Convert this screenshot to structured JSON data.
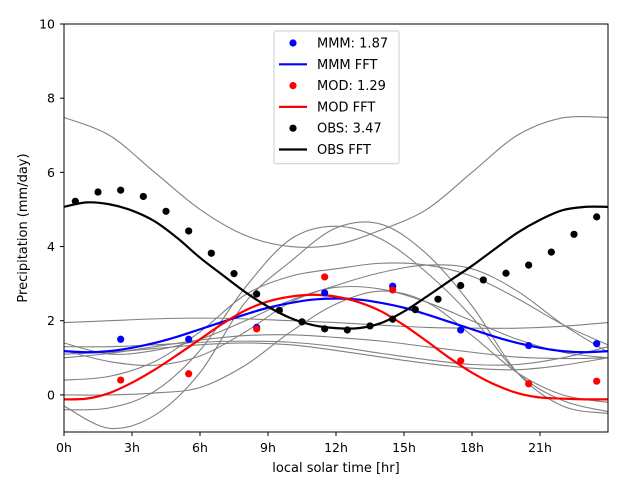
{
  "chart_data": {
    "type": "line",
    "title": "",
    "xlabel": "local solar time [hr]",
    "ylabel": "Precipitation (mm/day)",
    "xlim": [
      0,
      24
    ],
    "ylim": [
      -1,
      10
    ],
    "x_ticks": [
      {
        "value": 0,
        "label": "0h"
      },
      {
        "value": 3,
        "label": "3h"
      },
      {
        "value": 6,
        "label": "6h"
      },
      {
        "value": 9,
        "label": "9h"
      },
      {
        "value": 12,
        "label": "12h"
      },
      {
        "value": 15,
        "label": "15h"
      },
      {
        "value": 18,
        "label": "18h"
      },
      {
        "value": 21,
        "label": "21h"
      }
    ],
    "y_ticks": [
      {
        "value": 0,
        "label": "0"
      },
      {
        "value": 2,
        "label": "2"
      },
      {
        "value": 4,
        "label": "4"
      },
      {
        "value": 6,
        "label": "6"
      },
      {
        "value": 8,
        "label": "8"
      },
      {
        "value": 10,
        "label": "10"
      }
    ],
    "colors": {
      "mmm": "#0000ff",
      "mod": "#ff0000",
      "obs": "#000000",
      "models": "#808080"
    },
    "legend": [
      {
        "label": "MMM: 1.87",
        "kind": "marker",
        "series": "mmm"
      },
      {
        "label": "MMM FFT",
        "kind": "line",
        "series": "mmm"
      },
      {
        "label": "MOD: 1.29",
        "kind": "marker",
        "series": "mod"
      },
      {
        "label": "MOD FFT",
        "kind": "line",
        "series": "mod"
      },
      {
        "label": "OBS: 3.47",
        "kind": "marker",
        "series": "obs"
      },
      {
        "label": "OBS FFT",
        "kind": "line",
        "series": "obs"
      }
    ],
    "scatter_series": [
      {
        "name": "MMM",
        "color_key": "mmm",
        "x": [
          2.5,
          5.5,
          8.5,
          11.5,
          14.5,
          17.5,
          20.5,
          23.5
        ],
        "y": [
          1.5,
          1.5,
          1.82,
          2.75,
          2.93,
          1.75,
          1.33,
          1.38
        ]
      },
      {
        "name": "MOD",
        "color_key": "mod",
        "x": [
          2.5,
          5.5,
          8.5,
          11.5,
          14.5,
          17.5,
          20.5,
          23.5
        ],
        "y": [
          0.4,
          0.57,
          1.78,
          3.18,
          2.83,
          0.92,
          0.3,
          0.37
        ]
      },
      {
        "name": "OBS",
        "color_key": "obs",
        "x": [
          0.5,
          1.5,
          2.5,
          3.5,
          4.5,
          5.5,
          6.5,
          7.5,
          8.5,
          9.5,
          10.5,
          11.5,
          12.5,
          13.5,
          14.5,
          15.5,
          16.5,
          17.5,
          18.5,
          19.5,
          20.5,
          21.5,
          22.5,
          23.5
        ],
        "y": [
          5.22,
          5.47,
          5.52,
          5.35,
          4.95,
          4.42,
          3.82,
          3.27,
          2.72,
          2.28,
          1.97,
          1.78,
          1.75,
          1.86,
          2.04,
          2.3,
          2.58,
          2.95,
          3.1,
          3.28,
          3.5,
          3.85,
          4.33,
          4.8
        ]
      }
    ],
    "fft_series": [
      {
        "name": "MMM FFT",
        "color_key": "mmm",
        "x": [
          0,
          1,
          2,
          3,
          4,
          5,
          6,
          7,
          8,
          9,
          10,
          11,
          12,
          13,
          14,
          15,
          16,
          17,
          18,
          19,
          20,
          21,
          22,
          23,
          24
        ],
        "y": [
          1.18,
          1.15,
          1.18,
          1.27,
          1.4,
          1.57,
          1.77,
          1.97,
          2.17,
          2.35,
          2.48,
          2.57,
          2.6,
          2.57,
          2.48,
          2.35,
          2.17,
          1.97,
          1.77,
          1.57,
          1.4,
          1.27,
          1.18,
          1.15,
          1.18
        ]
      },
      {
        "name": "MOD FFT",
        "color_key": "mod",
        "x": [
          0,
          1,
          2,
          3,
          4,
          5,
          6,
          7,
          8,
          9,
          10,
          11,
          12,
          13,
          14,
          15,
          16,
          17,
          18,
          19,
          20,
          21,
          22,
          23,
          24
        ],
        "y": [
          -0.12,
          -0.1,
          0.05,
          0.33,
          0.68,
          1.08,
          1.5,
          1.92,
          2.28,
          2.52,
          2.65,
          2.7,
          2.65,
          2.5,
          2.25,
          1.88,
          1.45,
          1.0,
          0.6,
          0.28,
          0.05,
          -0.07,
          -0.1,
          -0.12,
          -0.12
        ]
      },
      {
        "name": "OBS FFT",
        "color_key": "obs",
        "x": [
          0,
          1,
          2,
          3,
          4,
          5,
          6,
          7,
          8,
          9,
          10,
          11,
          12,
          13,
          14,
          15,
          16,
          17,
          18,
          19,
          20,
          21,
          22,
          23,
          24
        ],
        "y": [
          5.07,
          5.19,
          5.14,
          4.97,
          4.68,
          4.23,
          3.7,
          3.23,
          2.77,
          2.38,
          2.07,
          1.88,
          1.8,
          1.8,
          1.94,
          2.25,
          2.65,
          3.07,
          3.48,
          3.93,
          4.37,
          4.72,
          4.98,
          5.07,
          5.07
        ]
      }
    ],
    "model_curves": [
      {
        "name": "model-1",
        "x": [
          0,
          2,
          4,
          6,
          8,
          10,
          12,
          14,
          16,
          18,
          20,
          22,
          24
        ],
        "y": [
          7.48,
          7.0,
          6.0,
          5.0,
          4.3,
          4.0,
          4.05,
          4.45,
          5.0,
          6.0,
          7.0,
          7.47,
          7.48
        ]
      },
      {
        "name": "model-2",
        "x": [
          0,
          2,
          4,
          6,
          8,
          10,
          12,
          14,
          16,
          18,
          20,
          22,
          24
        ],
        "y": [
          -0.3,
          -0.9,
          -0.55,
          0.6,
          2.5,
          3.6,
          4.5,
          4.6,
          3.8,
          2.4,
          0.6,
          -0.3,
          -0.5
        ]
      },
      {
        "name": "model-3",
        "x": [
          0,
          2,
          4,
          6,
          8,
          10,
          12,
          14,
          16,
          18,
          20,
          22,
          24
        ],
        "y": [
          -0.4,
          -0.35,
          0.1,
          1.2,
          2.9,
          4.2,
          4.55,
          4.2,
          3.3,
          2.1,
          0.6,
          -0.15,
          -0.45
        ]
      },
      {
        "name": "model-4",
        "x": [
          0,
          2,
          4,
          6,
          8,
          10,
          12,
          14,
          16,
          18,
          20,
          22,
          24
        ],
        "y": [
          0.4,
          0.5,
          0.9,
          1.7,
          2.7,
          3.2,
          3.4,
          3.55,
          3.5,
          3.2,
          2.6,
          1.9,
          1.35
        ]
      },
      {
        "name": "model-5",
        "x": [
          0,
          2,
          4,
          6,
          8,
          10,
          12,
          14,
          16,
          18,
          20,
          22,
          24
        ],
        "y": [
          1.2,
          0.9,
          0.8,
          1.05,
          1.7,
          2.5,
          2.95,
          3.3,
          3.5,
          3.4,
          2.8,
          1.9,
          1.15
        ]
      },
      {
        "name": "model-6",
        "x": [
          0,
          2,
          4,
          6,
          8,
          10,
          12,
          14,
          16,
          18,
          20,
          22,
          24
        ],
        "y": [
          1.95,
          2.0,
          2.05,
          2.07,
          2.05,
          2.0,
          1.95,
          1.88,
          1.82,
          1.8,
          1.8,
          1.85,
          1.95
        ]
      },
      {
        "name": "model-7",
        "x": [
          0,
          2,
          4,
          6,
          8,
          10,
          12,
          14,
          16,
          18,
          20,
          22,
          24
        ],
        "y": [
          1.0,
          1.12,
          1.3,
          1.48,
          1.6,
          1.62,
          1.55,
          1.45,
          1.3,
          1.15,
          1.02,
          0.98,
          1.0
        ]
      },
      {
        "name": "model-8",
        "x": [
          0,
          2,
          4,
          6,
          8,
          10,
          12,
          14,
          16,
          18,
          20,
          22,
          24
        ],
        "y": [
          1.3,
          1.3,
          1.35,
          1.42,
          1.45,
          1.42,
          1.3,
          1.12,
          0.95,
          0.82,
          0.82,
          1.0,
          1.3
        ]
      },
      {
        "name": "model-9",
        "x": [
          0,
          2,
          4,
          6,
          8,
          10,
          12,
          14,
          16,
          18,
          20,
          22,
          24
        ],
        "y": [
          1.4,
          1.1,
          1.2,
          1.5,
          2.0,
          2.55,
          2.9,
          2.85,
          2.5,
          2.0,
          1.5,
          1.15,
          1.0
        ]
      },
      {
        "name": "model-10",
        "x": [
          0,
          2,
          4,
          6,
          8,
          10,
          12,
          14,
          16,
          18,
          20,
          22,
          24
        ],
        "y": [
          1.1,
          1.15,
          1.25,
          1.35,
          1.4,
          1.35,
          1.2,
          1.02,
          0.85,
          0.72,
          0.68,
          0.8,
          1.0
        ]
      },
      {
        "name": "model-11",
        "x": [
          0,
          2,
          4,
          6,
          8,
          10,
          12,
          14,
          16,
          18,
          20,
          22,
          24
        ],
        "y": [
          0.0,
          0.0,
          0.05,
          0.2,
          0.8,
          1.7,
          2.45,
          2.8,
          2.5,
          1.6,
          0.6,
          0.0,
          -0.2
        ]
      }
    ]
  }
}
